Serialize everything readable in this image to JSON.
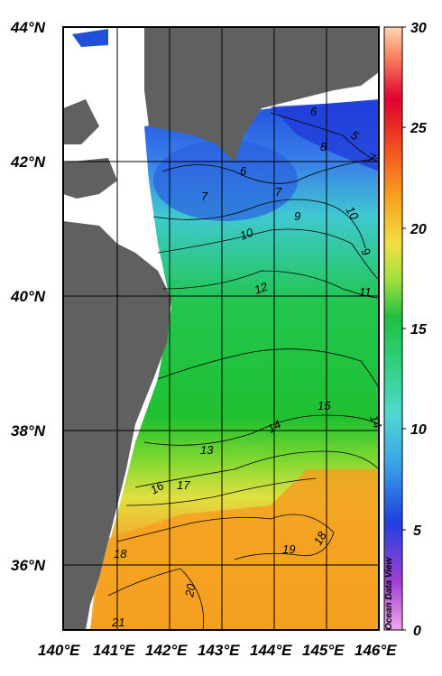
{
  "map": {
    "lon_ticks": [
      "140°E",
      "141°E",
      "142°E",
      "143°E",
      "144°E",
      "145°E",
      "146°E"
    ],
    "lat_ticks": [
      "44°N",
      "42°N",
      "40°N",
      "38°N",
      "36°N"
    ],
    "credit": "Ocean Data View"
  },
  "colorbar": {
    "min": 0,
    "max": 30,
    "tick_labels": [
      "30",
      "25",
      "20",
      "15",
      "10",
      "5",
      "0"
    ],
    "colors": [
      "#ffd0a0",
      "#ff7a2a",
      "#e00020",
      "#f4a020",
      "#f4c830",
      "#b8e030",
      "#2ecc40",
      "#2cc890",
      "#50d8d0",
      "#3aa8e0",
      "#1840d0",
      "#8030c0",
      "#e890e0"
    ]
  },
  "contour_labels": [
    "5",
    "6",
    "7",
    "8",
    "7",
    "6",
    "7",
    "9",
    "10",
    "10",
    "9",
    "11",
    "12",
    "15",
    "14",
    "14",
    "13",
    "16",
    "17",
    "18",
    "19",
    "18",
    "20",
    "21"
  ],
  "land_color": "#606060"
}
